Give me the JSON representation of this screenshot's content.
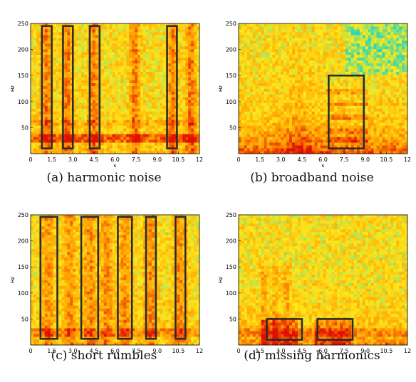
{
  "figure": {
    "panels": [
      {
        "caption": "(a) harmonic noise",
        "ylabel": "Hz",
        "xlabel": "s",
        "xticks": [
          "0",
          "1.5",
          "3.0",
          "4.5",
          "6.0",
          "7.5",
          "9.0",
          "10.5",
          "12"
        ],
        "yticks": [
          "50",
          "100",
          "150",
          "200",
          "250"
        ],
        "style": "harmonic",
        "boxes": [
          {
            "x0": 0.8,
            "x1": 1.5,
            "y0": 10,
            "y1": 245
          },
          {
            "x0": 2.3,
            "x1": 3.0,
            "y0": 10,
            "y1": 245
          },
          {
            "x0": 4.2,
            "x1": 4.9,
            "y0": 10,
            "y1": 245
          },
          {
            "x0": 9.7,
            "x1": 10.4,
            "y0": 10,
            "y1": 245
          }
        ]
      },
      {
        "caption": "(b) broadband noise",
        "ylabel": "Hz",
        "xlabel": "s",
        "xticks": [
          "0",
          "1.5",
          "3.0",
          "4.5",
          "6.0",
          "7.5",
          "9.0",
          "10.5",
          "12"
        ],
        "yticks": [
          "50",
          "100",
          "150",
          "200",
          "250"
        ],
        "style": "broadband",
        "boxes": [
          {
            "x0": 6.4,
            "x1": 8.9,
            "y0": 10,
            "y1": 150
          }
        ]
      },
      {
        "caption": "(c) short rumbles",
        "ylabel": "Hz",
        "xlabel": "s",
        "xticks": [
          "0",
          "1.5",
          "3.0",
          "4.5",
          "6.0",
          "7.5",
          "9.0",
          "10.5",
          "12"
        ],
        "yticks": [
          "50",
          "100",
          "150",
          "200",
          "250"
        ],
        "style": "rumbles",
        "boxes": [
          {
            "x0": 0.7,
            "x1": 1.9,
            "y0": 12,
            "y1": 246
          },
          {
            "x0": 3.6,
            "x1": 4.8,
            "y0": 12,
            "y1": 246
          },
          {
            "x0": 6.2,
            "x1": 7.2,
            "y0": 12,
            "y1": 246
          },
          {
            "x0": 8.2,
            "x1": 8.9,
            "y0": 12,
            "y1": 246
          },
          {
            "x0": 10.3,
            "x1": 11.0,
            "y0": 12,
            "y1": 246
          }
        ]
      },
      {
        "caption": "(d) missing harmonics",
        "ylabel": "Hz",
        "xlabel": "s",
        "xticks": [
          "0",
          "1.5",
          "3.0",
          "4.5",
          "6.0",
          "7.5",
          "9.0",
          "10.5",
          "12"
        ],
        "yticks": [
          "50",
          "100",
          "150",
          "200",
          "250"
        ],
        "style": "missing",
        "boxes": [
          {
            "x0": 2.0,
            "x1": 4.5,
            "y0": 10,
            "y1": 50
          },
          {
            "x0": 5.6,
            "x1": 8.1,
            "y0": 10,
            "y1": 50
          }
        ]
      }
    ]
  },
  "chart_data": [
    {
      "type": "heatmap",
      "title": "(a) harmonic noise",
      "xlabel": "s",
      "ylabel": "Hz",
      "xlim": [
        0,
        12
      ],
      "ylim": [
        0,
        250
      ],
      "colormap": [
        "#1fd6c0",
        "#ffe81a",
        "#ff9a00",
        "#e01000"
      ],
      "grid": false
    },
    {
      "type": "heatmap",
      "title": "(b) broadband noise",
      "xlabel": "s",
      "ylabel": "Hz",
      "xlim": [
        0,
        12
      ],
      "ylim": [
        0,
        250
      ],
      "colormap": [
        "#1fd6c0",
        "#ffe81a",
        "#ff9a00",
        "#e01000"
      ],
      "grid": false
    },
    {
      "type": "heatmap",
      "title": "(c) short rumbles",
      "xlabel": "s",
      "ylabel": "Hz",
      "xlim": [
        0,
        12
      ],
      "ylim": [
        0,
        250
      ],
      "colormap": [
        "#1fd6c0",
        "#ffe81a",
        "#ff9a00",
        "#e01000"
      ],
      "grid": false
    },
    {
      "type": "heatmap",
      "title": "(d) missing harmonics",
      "xlabel": "s",
      "ylabel": "Hz",
      "xlim": [
        0,
        12
      ],
      "ylim": [
        0,
        250
      ],
      "colormap": [
        "#1fd6c0",
        "#ffe81a",
        "#ff9a00",
        "#e01000"
      ],
      "grid": false
    }
  ]
}
